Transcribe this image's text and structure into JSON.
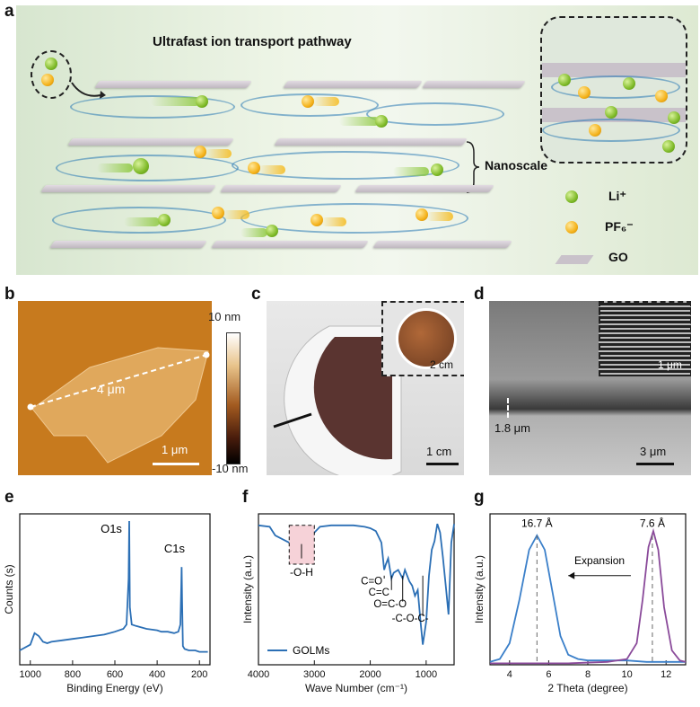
{
  "figure": {
    "panel_labels": [
      "a",
      "b",
      "c",
      "d",
      "e",
      "f",
      "g"
    ],
    "a": {
      "title": "Ultrafast ion transport pathway",
      "nanoscale_label": "Nanoscale",
      "legend": [
        {
          "label": "Li⁺",
          "icon": "li-ion-icon"
        },
        {
          "label": "PF₆⁻",
          "icon": "pf6-ion-icon"
        },
        {
          "label": "GO",
          "icon": "go-sheet-icon"
        }
      ],
      "colors": {
        "li": "#7fba28",
        "pf6": "#f4b21a",
        "sheet": "#c9c2ca",
        "water": "#2878b4"
      }
    },
    "b": {
      "colorbar_top": "10 nm",
      "colorbar_bottom": "-10 nm",
      "length_label": "4 μm",
      "scalebar_label": "1 μm"
    },
    "c": {
      "inset_scale": "2 cm",
      "scalebar_label": "1 cm"
    },
    "d": {
      "inset_scale": "1 μm",
      "thickness_label": "1.8 μm",
      "scalebar_label": "3 μm"
    }
  },
  "chart_data": [
    {
      "type": "line",
      "panel": "e",
      "xlabel": "Binding Energy (eV)",
      "ylabel": "Counts (s)",
      "xlim": [
        1050,
        150
      ],
      "xticks": [
        "1000",
        "800",
        "600",
        "400",
        "200"
      ],
      "peaks": [
        {
          "label": "O1s",
          "x": 532
        },
        {
          "label": "C1s",
          "x": 284
        }
      ],
      "color": "#2b6fb5",
      "x": [
        1050,
        1000,
        980,
        960,
        940,
        920,
        900,
        850,
        800,
        750,
        700,
        650,
        600,
        560,
        545,
        535,
        532,
        529,
        520,
        500,
        450,
        400,
        380,
        350,
        320,
        300,
        290,
        286,
        284,
        282,
        278,
        270,
        250,
        220,
        200,
        180,
        160
      ],
      "y": [
        0.1,
        0.14,
        0.22,
        0.2,
        0.16,
        0.15,
        0.16,
        0.17,
        0.18,
        0.19,
        0.2,
        0.21,
        0.23,
        0.25,
        0.28,
        0.6,
        1.0,
        0.4,
        0.28,
        0.27,
        0.25,
        0.24,
        0.23,
        0.23,
        0.22,
        0.23,
        0.28,
        0.55,
        0.68,
        0.45,
        0.13,
        0.11,
        0.1,
        0.1,
        0.09,
        0.09,
        0.09
      ]
    },
    {
      "type": "line",
      "panel": "f",
      "xlabel": "Wave Number (cm⁻¹)",
      "ylabel": "Intensity (a.u.)",
      "xlim": [
        4000,
        500
      ],
      "xticks": [
        "4000",
        "3000",
        "2000",
        "1000"
      ],
      "series": [
        {
          "name": "GOLMs",
          "color": "#2b6fb5"
        }
      ],
      "annotations": [
        "-O-H",
        "C=O",
        "C=C",
        "O=C-O",
        "-C-O-C-"
      ],
      "x": [
        4000,
        3800,
        3700,
        3500,
        3400,
        3250,
        3100,
        3000,
        2900,
        2700,
        2500,
        2300,
        2100,
        2000,
        1900,
        1800,
        1750,
        1720,
        1680,
        1620,
        1580,
        1500,
        1420,
        1380,
        1300,
        1250,
        1200,
        1150,
        1100,
        1060,
        1000,
        950,
        900,
        850,
        800,
        750,
        700,
        650,
        600,
        550,
        500
      ],
      "y": [
        0.97,
        0.96,
        0.9,
        0.86,
        0.84,
        0.83,
        0.87,
        0.92,
        0.96,
        0.97,
        0.97,
        0.97,
        0.96,
        0.95,
        0.93,
        0.85,
        0.66,
        0.7,
        0.74,
        0.6,
        0.64,
        0.66,
        0.6,
        0.66,
        0.58,
        0.55,
        0.48,
        0.52,
        0.3,
        0.14,
        0.3,
        0.62,
        0.8,
        0.86,
        0.98,
        0.92,
        0.75,
        0.55,
        0.35,
        0.85,
        0.98
      ]
    },
    {
      "type": "line",
      "panel": "g",
      "xlabel": "2 Theta (degree)",
      "ylabel": "Intensity (a.u.)",
      "xlim": [
        3,
        13
      ],
      "xticks": [
        "4",
        "6",
        "8",
        "10",
        "12"
      ],
      "ylim": [
        0,
        1
      ],
      "annotations": [
        {
          "label": "16.7 Å",
          "x": 5.4
        },
        {
          "label": "7.6 Å",
          "x": 11.3
        },
        {
          "label": "Expansion"
        }
      ],
      "series": [
        {
          "color": "#3a7fc9",
          "x": [
            3,
            3.5,
            4,
            4.5,
            5,
            5.4,
            5.8,
            6.2,
            6.6,
            7,
            7.5,
            8,
            9,
            10,
            11,
            12,
            13
          ],
          "y": [
            0.02,
            0.04,
            0.15,
            0.45,
            0.8,
            0.9,
            0.8,
            0.5,
            0.2,
            0.07,
            0.04,
            0.03,
            0.03,
            0.03,
            0.02,
            0.02,
            0.02
          ]
        },
        {
          "color": "#8a4a9a",
          "x": [
            3,
            5,
            7,
            9,
            10,
            10.5,
            10.8,
            11.1,
            11.35,
            11.6,
            11.9,
            12.3,
            12.7,
            13
          ],
          "y": [
            0.01,
            0.01,
            0.01,
            0.02,
            0.04,
            0.15,
            0.45,
            0.82,
            0.93,
            0.8,
            0.4,
            0.1,
            0.03,
            0.02
          ]
        }
      ]
    }
  ]
}
